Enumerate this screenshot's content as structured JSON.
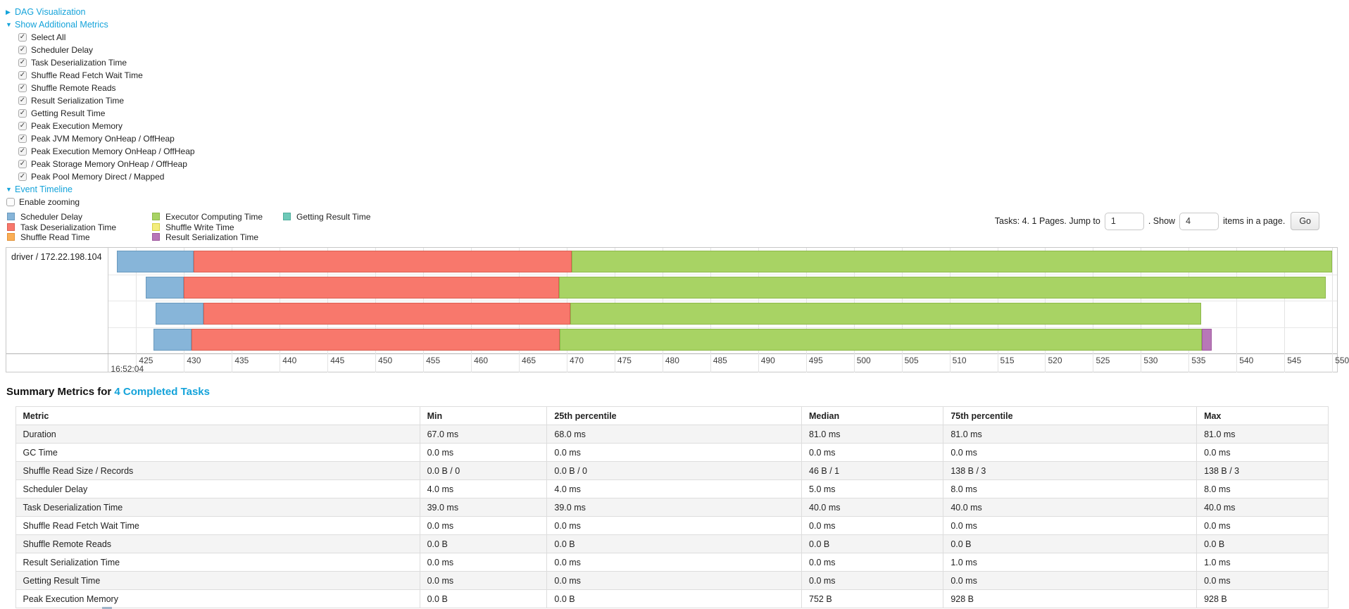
{
  "page": {
    "accent": "#14a3da"
  },
  "dag_section": {
    "label": "DAG Visualization"
  },
  "metrics_section": {
    "label": "Show Additional Metrics",
    "checkboxes": [
      "Select All",
      "Scheduler Delay",
      "Task Deserialization Time",
      "Shuffle Read Fetch Wait Time",
      "Shuffle Remote Reads",
      "Result Serialization Time",
      "Getting Result Time",
      "Peak Execution Memory",
      "Peak JVM Memory OnHeap / OffHeap",
      "Peak Execution Memory OnHeap / OffHeap",
      "Peak Storage Memory OnHeap / OffHeap",
      "Peak Pool Memory Direct / Mapped"
    ]
  },
  "timeline_section": {
    "label": "Event Timeline",
    "enable_zooming_label": "Enable zooming"
  },
  "pagination": {
    "prefix": "Tasks: 4. 1 Pages. Jump to",
    "jump_value": "1",
    "mid": ". Show",
    "show_value": "4",
    "suffix": "items in a page.",
    "go_label": "Go"
  },
  "chart_data": {
    "type": "timeline-gantt",
    "row_label": "driver / 172.22.198.104",
    "axis": {
      "min": 422.1,
      "max": 550.5,
      "tick_start": 425,
      "tick_end": 550,
      "tick_step": 5,
      "base_time": "16:52:04",
      "units": "ms offsets within 16:52:04"
    },
    "legend_columns": [
      [
        {
          "key": "scheduler_delay",
          "label": "Scheduler Delay",
          "fill": "#87b5d9",
          "border": "#6999bd"
        },
        {
          "key": "task_deserialization",
          "label": "Task Deserialization Time",
          "fill": "#f8786c",
          "border": "#d95f52"
        },
        {
          "key": "shuffle_read",
          "label": "Shuffle Read Time",
          "fill": "#fbae55",
          "border": "#e0923a"
        }
      ],
      [
        {
          "key": "executor_computing",
          "label": "Executor Computing Time",
          "fill": "#a8d364",
          "border": "#8db84a"
        },
        {
          "key": "shuffle_write",
          "label": "Shuffle Write Time",
          "fill": "#f3ed7c",
          "border": "#d8d145"
        },
        {
          "key": "result_serialization",
          "label": "Result Serialization Time",
          "fill": "#b877b8",
          "border": "#9f5a9f"
        }
      ],
      [
        {
          "key": "getting_result",
          "label": "Getting Result Time",
          "fill": "#6ec9b8",
          "border": "#4fae9c"
        }
      ]
    ],
    "colors": {
      "scheduler_delay": {
        "fill": "#87b5d9",
        "border": "#6999bd"
      },
      "task_deserialization": {
        "fill": "#f8786c",
        "border": "#d95f52"
      },
      "executor_computing": {
        "fill": "#a8d364",
        "border": "#8db84a"
      },
      "result_serialization": {
        "fill": "#b877b8",
        "border": "#9f5a9f"
      }
    },
    "tasks": [
      {
        "segments": [
          {
            "key": "scheduler_delay",
            "start": 423.0,
            "end": 431.0
          },
          {
            "key": "task_deserialization",
            "start": 431.0,
            "end": 470.5
          },
          {
            "key": "executor_computing",
            "start": 470.5,
            "end": 550.0
          }
        ]
      },
      {
        "segments": [
          {
            "key": "scheduler_delay",
            "start": 426.0,
            "end": 430.0
          },
          {
            "key": "task_deserialization",
            "start": 430.0,
            "end": 469.2
          },
          {
            "key": "executor_computing",
            "start": 469.2,
            "end": 549.3
          }
        ]
      },
      {
        "segments": [
          {
            "key": "scheduler_delay",
            "start": 427.0,
            "end": 432.0
          },
          {
            "key": "task_deserialization",
            "start": 432.0,
            "end": 470.4
          },
          {
            "key": "executor_computing",
            "start": 470.4,
            "end": 536.3
          }
        ]
      },
      {
        "segments": [
          {
            "key": "scheduler_delay",
            "start": 426.8,
            "end": 430.8
          },
          {
            "key": "task_deserialization",
            "start": 430.8,
            "end": 469.3
          },
          {
            "key": "executor_computing",
            "start": 469.3,
            "end": 536.4
          },
          {
            "key": "result_serialization",
            "start": 536.4,
            "end": 537.4
          }
        ]
      }
    ]
  },
  "summary": {
    "title_prefix": "Summary Metrics for",
    "title_link": "4 Completed Tasks",
    "columns": [
      "Metric",
      "Min",
      "25th percentile",
      "Median",
      "75th percentile",
      "Max"
    ],
    "col_widths_pct": [
      30.8,
      9.7,
      19.4,
      10.8,
      19.3,
      10.0
    ],
    "rows": [
      {
        "metric": "Duration",
        "values": [
          "67.0 ms",
          "68.0 ms",
          "81.0 ms",
          "81.0 ms",
          "81.0 ms"
        ]
      },
      {
        "metric": "GC Time",
        "values": [
          "0.0 ms",
          "0.0 ms",
          "0.0 ms",
          "0.0 ms",
          "0.0 ms"
        ]
      },
      {
        "metric": "Shuffle Read Size / Records",
        "values": [
          "0.0 B / 0",
          "0.0 B / 0",
          "46 B / 1",
          "138 B / 3",
          "138 B / 3"
        ]
      },
      {
        "metric": "Scheduler Delay",
        "values": [
          "4.0 ms",
          "4.0 ms",
          "5.0 ms",
          "8.0 ms",
          "8.0 ms"
        ]
      },
      {
        "metric": "Task Deserialization Time",
        "values": [
          "39.0 ms",
          "39.0 ms",
          "40.0 ms",
          "40.0 ms",
          "40.0 ms"
        ]
      },
      {
        "metric": "Shuffle Read Fetch Wait Time",
        "values": [
          "0.0 ms",
          "0.0 ms",
          "0.0 ms",
          "0.0 ms",
          "0.0 ms"
        ]
      },
      {
        "metric": "Shuffle Remote Reads",
        "values": [
          "0.0 B",
          "0.0 B",
          "0.0 B",
          "0.0 B",
          "0.0 B"
        ]
      },
      {
        "metric": "Result Serialization Time",
        "values": [
          "0.0 ms",
          "0.0 ms",
          "0.0 ms",
          "1.0 ms",
          "1.0 ms"
        ]
      },
      {
        "metric": "Getting Result Time",
        "values": [
          "0.0 ms",
          "0.0 ms",
          "0.0 ms",
          "0.0 ms",
          "0.0 ms"
        ]
      },
      {
        "metric": "Peak Execution Memory",
        "values": [
          "0.0 B",
          "0.0 B",
          "752 B",
          "928 B",
          "928 B"
        ]
      }
    ]
  }
}
